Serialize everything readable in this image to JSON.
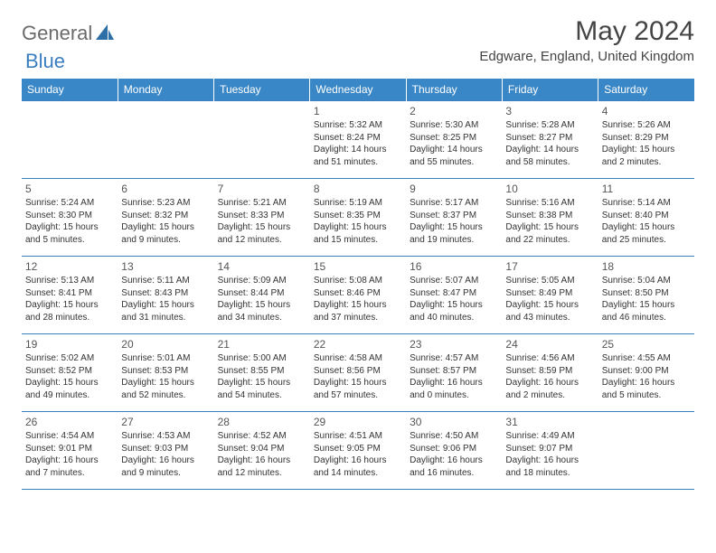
{
  "brand": {
    "part1": "General",
    "part2": "Blue"
  },
  "title": "May 2024",
  "location": "Edgware, England, United Kingdom",
  "colors": {
    "header_bg": "#3a87c7",
    "border": "#3a7ebf",
    "logo_gray": "#6b6b6b",
    "logo_blue": "#3a7ebf",
    "text": "#333333"
  },
  "day_names": [
    "Sunday",
    "Monday",
    "Tuesday",
    "Wednesday",
    "Thursday",
    "Friday",
    "Saturday"
  ],
  "weeks": [
    [
      null,
      null,
      null,
      {
        "n": "1",
        "sr": "Sunrise: 5:32 AM",
        "ss": "Sunset: 8:24 PM",
        "dl": "Daylight: 14 hours and 51 minutes."
      },
      {
        "n": "2",
        "sr": "Sunrise: 5:30 AM",
        "ss": "Sunset: 8:25 PM",
        "dl": "Daylight: 14 hours and 55 minutes."
      },
      {
        "n": "3",
        "sr": "Sunrise: 5:28 AM",
        "ss": "Sunset: 8:27 PM",
        "dl": "Daylight: 14 hours and 58 minutes."
      },
      {
        "n": "4",
        "sr": "Sunrise: 5:26 AM",
        "ss": "Sunset: 8:29 PM",
        "dl": "Daylight: 15 hours and 2 minutes."
      }
    ],
    [
      {
        "n": "5",
        "sr": "Sunrise: 5:24 AM",
        "ss": "Sunset: 8:30 PM",
        "dl": "Daylight: 15 hours and 5 minutes."
      },
      {
        "n": "6",
        "sr": "Sunrise: 5:23 AM",
        "ss": "Sunset: 8:32 PM",
        "dl": "Daylight: 15 hours and 9 minutes."
      },
      {
        "n": "7",
        "sr": "Sunrise: 5:21 AM",
        "ss": "Sunset: 8:33 PM",
        "dl": "Daylight: 15 hours and 12 minutes."
      },
      {
        "n": "8",
        "sr": "Sunrise: 5:19 AM",
        "ss": "Sunset: 8:35 PM",
        "dl": "Daylight: 15 hours and 15 minutes."
      },
      {
        "n": "9",
        "sr": "Sunrise: 5:17 AM",
        "ss": "Sunset: 8:37 PM",
        "dl": "Daylight: 15 hours and 19 minutes."
      },
      {
        "n": "10",
        "sr": "Sunrise: 5:16 AM",
        "ss": "Sunset: 8:38 PM",
        "dl": "Daylight: 15 hours and 22 minutes."
      },
      {
        "n": "11",
        "sr": "Sunrise: 5:14 AM",
        "ss": "Sunset: 8:40 PM",
        "dl": "Daylight: 15 hours and 25 minutes."
      }
    ],
    [
      {
        "n": "12",
        "sr": "Sunrise: 5:13 AM",
        "ss": "Sunset: 8:41 PM",
        "dl": "Daylight: 15 hours and 28 minutes."
      },
      {
        "n": "13",
        "sr": "Sunrise: 5:11 AM",
        "ss": "Sunset: 8:43 PM",
        "dl": "Daylight: 15 hours and 31 minutes."
      },
      {
        "n": "14",
        "sr": "Sunrise: 5:09 AM",
        "ss": "Sunset: 8:44 PM",
        "dl": "Daylight: 15 hours and 34 minutes."
      },
      {
        "n": "15",
        "sr": "Sunrise: 5:08 AM",
        "ss": "Sunset: 8:46 PM",
        "dl": "Daylight: 15 hours and 37 minutes."
      },
      {
        "n": "16",
        "sr": "Sunrise: 5:07 AM",
        "ss": "Sunset: 8:47 PM",
        "dl": "Daylight: 15 hours and 40 minutes."
      },
      {
        "n": "17",
        "sr": "Sunrise: 5:05 AM",
        "ss": "Sunset: 8:49 PM",
        "dl": "Daylight: 15 hours and 43 minutes."
      },
      {
        "n": "18",
        "sr": "Sunrise: 5:04 AM",
        "ss": "Sunset: 8:50 PM",
        "dl": "Daylight: 15 hours and 46 minutes."
      }
    ],
    [
      {
        "n": "19",
        "sr": "Sunrise: 5:02 AM",
        "ss": "Sunset: 8:52 PM",
        "dl": "Daylight: 15 hours and 49 minutes."
      },
      {
        "n": "20",
        "sr": "Sunrise: 5:01 AM",
        "ss": "Sunset: 8:53 PM",
        "dl": "Daylight: 15 hours and 52 minutes."
      },
      {
        "n": "21",
        "sr": "Sunrise: 5:00 AM",
        "ss": "Sunset: 8:55 PM",
        "dl": "Daylight: 15 hours and 54 minutes."
      },
      {
        "n": "22",
        "sr": "Sunrise: 4:58 AM",
        "ss": "Sunset: 8:56 PM",
        "dl": "Daylight: 15 hours and 57 minutes."
      },
      {
        "n": "23",
        "sr": "Sunrise: 4:57 AM",
        "ss": "Sunset: 8:57 PM",
        "dl": "Daylight: 16 hours and 0 minutes."
      },
      {
        "n": "24",
        "sr": "Sunrise: 4:56 AM",
        "ss": "Sunset: 8:59 PM",
        "dl": "Daylight: 16 hours and 2 minutes."
      },
      {
        "n": "25",
        "sr": "Sunrise: 4:55 AM",
        "ss": "Sunset: 9:00 PM",
        "dl": "Daylight: 16 hours and 5 minutes."
      }
    ],
    [
      {
        "n": "26",
        "sr": "Sunrise: 4:54 AM",
        "ss": "Sunset: 9:01 PM",
        "dl": "Daylight: 16 hours and 7 minutes."
      },
      {
        "n": "27",
        "sr": "Sunrise: 4:53 AM",
        "ss": "Sunset: 9:03 PM",
        "dl": "Daylight: 16 hours and 9 minutes."
      },
      {
        "n": "28",
        "sr": "Sunrise: 4:52 AM",
        "ss": "Sunset: 9:04 PM",
        "dl": "Daylight: 16 hours and 12 minutes."
      },
      {
        "n": "29",
        "sr": "Sunrise: 4:51 AM",
        "ss": "Sunset: 9:05 PM",
        "dl": "Daylight: 16 hours and 14 minutes."
      },
      {
        "n": "30",
        "sr": "Sunrise: 4:50 AM",
        "ss": "Sunset: 9:06 PM",
        "dl": "Daylight: 16 hours and 16 minutes."
      },
      {
        "n": "31",
        "sr": "Sunrise: 4:49 AM",
        "ss": "Sunset: 9:07 PM",
        "dl": "Daylight: 16 hours and 18 minutes."
      },
      null
    ]
  ]
}
